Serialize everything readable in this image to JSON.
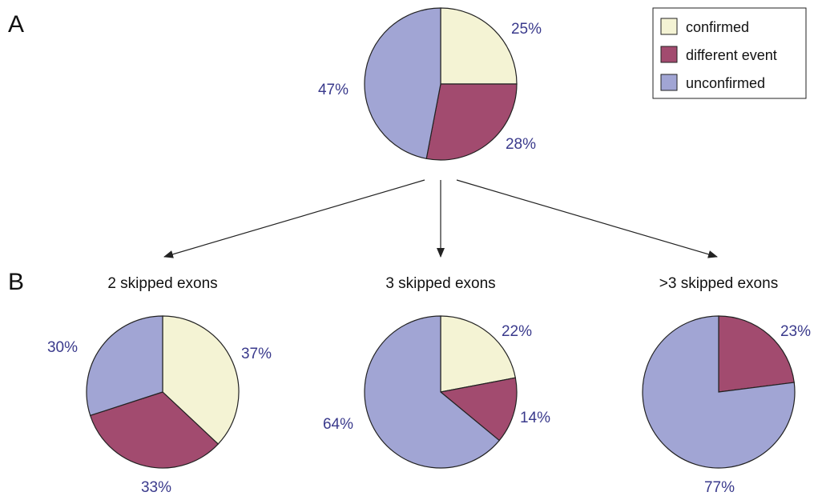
{
  "panels": {
    "a": "A",
    "b": "B"
  },
  "legend": {
    "items": [
      {
        "label": "confirmed",
        "color": "#f4f3d4"
      },
      {
        "label": "different event",
        "color": "#a24b6f"
      },
      {
        "label": "unconfirmed",
        "color": "#a1a5d4"
      }
    ]
  },
  "chart_data": [
    {
      "type": "pie",
      "title": "",
      "categories": [
        "confirmed",
        "different event",
        "unconfirmed"
      ],
      "values": [
        25,
        28,
        47
      ],
      "labels": [
        "25%",
        "28%",
        "47%"
      ]
    },
    {
      "type": "pie",
      "title": "2 skipped exons",
      "categories": [
        "confirmed",
        "different event",
        "unconfirmed"
      ],
      "values": [
        37,
        33,
        30
      ],
      "labels": [
        "37%",
        "33%",
        "30%"
      ]
    },
    {
      "type": "pie",
      "title": "3 skipped exons",
      "categories": [
        "confirmed",
        "different event",
        "unconfirmed"
      ],
      "values": [
        22,
        14,
        64
      ],
      "labels": [
        "22%",
        "14%",
        "64%"
      ]
    },
    {
      "type": "pie",
      "title": ">3 skipped exons",
      "categories": [
        "different event",
        "unconfirmed"
      ],
      "values": [
        23,
        77
      ],
      "labels": [
        "23%",
        "77%"
      ]
    }
  ]
}
